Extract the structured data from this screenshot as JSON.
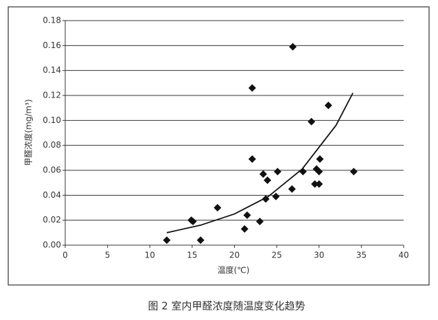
{
  "chart_data": {
    "type": "scatter",
    "xlabel": "温度(℃)",
    "ylabel": "甲醛浓度(mg/m³)",
    "caption": "图 2   室内甲醛浓度随温度变化趋势",
    "color": "#111111",
    "x": [
      12.0,
      14.9,
      15.1,
      16.0,
      18.0,
      21.2,
      21.5,
      22.1,
      22.1,
      23.0,
      23.4,
      23.7,
      23.9,
      24.9,
      25.1,
      26.8,
      26.9,
      28.1,
      29.1,
      29.5,
      29.7,
      30.0,
      30.0,
      30.1,
      31.1,
      34.1
    ],
    "values": [
      0.004,
      0.02,
      0.019,
      0.004,
      0.03,
      0.013,
      0.024,
      0.069,
      0.126,
      0.019,
      0.057,
      0.037,
      0.052,
      0.039,
      0.059,
      0.045,
      0.159,
      0.059,
      0.099,
      0.049,
      0.061,
      0.059,
      0.049,
      0.069,
      0.112,
      0.059
    ],
    "trendline": {
      "x": [
        12,
        16,
        20,
        24,
        28,
        32,
        34
      ],
      "values": [
        0.01,
        0.016,
        0.025,
        0.039,
        0.061,
        0.096,
        0.122
      ]
    },
    "xlim": [
      0,
      40
    ],
    "xticks": [
      0,
      5,
      10,
      15,
      20,
      25,
      30,
      35,
      40
    ],
    "ylim": [
      0,
      0.18
    ],
    "yticks": [
      {
        "value": 0,
        "label": "0.00"
      },
      0.02,
      0.04,
      0.06,
      0.08,
      {
        "value": 0.1,
        "label": "0.10"
      },
      0.12,
      0.14,
      0.16,
      0.18
    ],
    "grid": true
  }
}
